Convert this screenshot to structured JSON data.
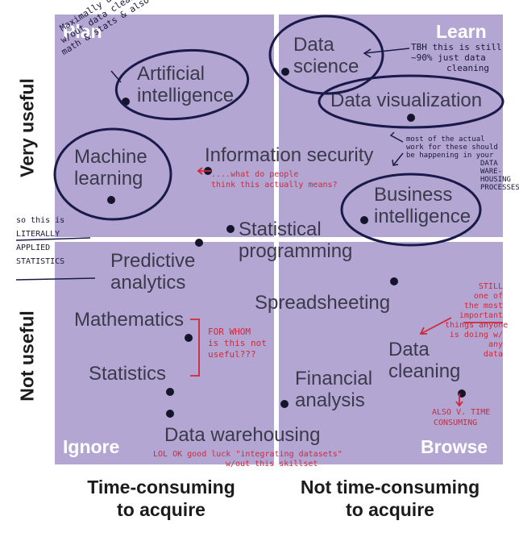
{
  "corners": {
    "plan": "Plan",
    "learn": "Learn",
    "ignore": "Ignore",
    "browse": "Browse"
  },
  "axes": {
    "y_top": "Very useful",
    "y_bottom": "Not useful",
    "x_left": [
      "Time-consuming",
      "to acquire"
    ],
    "x_right": [
      "Not time-consuming",
      "to acquire"
    ]
  },
  "terms": {
    "ai": [
      "Artificial",
      "intelligence"
    ],
    "data_science": [
      "Data",
      "science"
    ],
    "data_viz": "Data visualization",
    "ml": [
      "Machine",
      "learning"
    ],
    "infosec": "Information security",
    "bi": [
      "Business",
      "intelligence"
    ],
    "stat_prog": [
      "Statistical",
      "programming"
    ],
    "predictive": [
      "Predictive",
      "analytics"
    ],
    "spreadsheeting": "Spreadsheeting",
    "mathematics": "Mathematics",
    "statistics": "Statistics",
    "data_cleaning": [
      "Data",
      "cleaning"
    ],
    "financial": [
      "Financial",
      "analysis"
    ],
    "warehousing": "Data warehousing"
  },
  "annotations": {
    "ai_note": [
      "Maximally useless",
      "w/out data cleaning &",
      "math & stats & also ETHICS"
    ],
    "ds_note": [
      "TBH this is still",
      "~90% just data",
      "cleaning"
    ],
    "viz_note": [
      "most of the actual",
      "work for these should",
      "be happening in your",
      "DATA",
      "WARE-",
      "HOUSING",
      "PROCESSES"
    ],
    "infosec_note": [
      "....what do people",
      "think this actually means?"
    ],
    "ml_note": [
      "so this is",
      "LITERALLY",
      "APPLIED",
      "STATISTICS"
    ],
    "math_note": [
      "FOR WHOM",
      "is this not",
      "useful???"
    ],
    "cleaning_note": [
      "STILL",
      "one of",
      "the most",
      "important",
      "things anyone",
      "is doing w/",
      "any",
      "data"
    ],
    "time_note": [
      "ALSO V. TIME",
      "CONSUMING"
    ],
    "warehouse_note": [
      "LOL OK good luck \"integrating datasets\"",
      "w/out this skillset"
    ]
  },
  "colors": {
    "quadrant": "#b4a6d3",
    "circle_ink": "#1a1a4a",
    "red_ink": "#d0283a",
    "text": "#3a3a4a",
    "corner_text": "#ffffff"
  }
}
